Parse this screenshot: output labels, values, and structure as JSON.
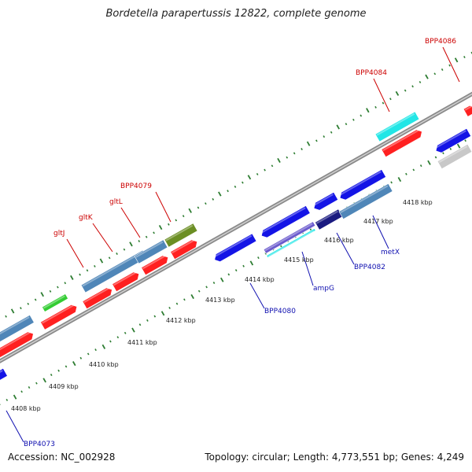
{
  "title": "Bordetella parapertussis 12822, complete genome",
  "footer": {
    "accession": "Accession: NC_002928",
    "summary": "Topology: circular; Length: 4,773,551 bp; Genes: 4,249"
  },
  "colors": {
    "red": "#ff2020",
    "blue": "#1414e6",
    "steel": "#4f86b8",
    "olive": "#6b8e23",
    "green": "#33cc33",
    "cyan": "#22e6e6",
    "navy": "#1a1a80",
    "gray": "#c8c8c8",
    "ticks": "#2e7d32",
    "label_red": "#cc0000",
    "label_blue": "#1010b0"
  },
  "kbp_labels": [
    "4408 kbp",
    "4409 kbp",
    "4410 kbp",
    "4411 kbp",
    "4412 kbp",
    "4413 kbp",
    "4414 kbp",
    "4415 kbp",
    "4416 kbp",
    "4417 kbp",
    "4418 kbp"
  ],
  "gene_labels": [
    {
      "text": "BPP4086",
      "color": "red"
    },
    {
      "text": "BPP4084",
      "color": "red"
    },
    {
      "text": "BPP4079",
      "color": "red"
    },
    {
      "text": "gltL",
      "color": "red"
    },
    {
      "text": "gltK",
      "color": "red"
    },
    {
      "text": "gltJ",
      "color": "red"
    },
    {
      "text": "metX",
      "color": "blue"
    },
    {
      "text": "BPP4082",
      "color": "blue"
    },
    {
      "text": "ampG",
      "color": "blue"
    },
    {
      "text": "BPP4080",
      "color": "blue"
    },
    {
      "text": "BPP4073",
      "color": "blue"
    }
  ]
}
